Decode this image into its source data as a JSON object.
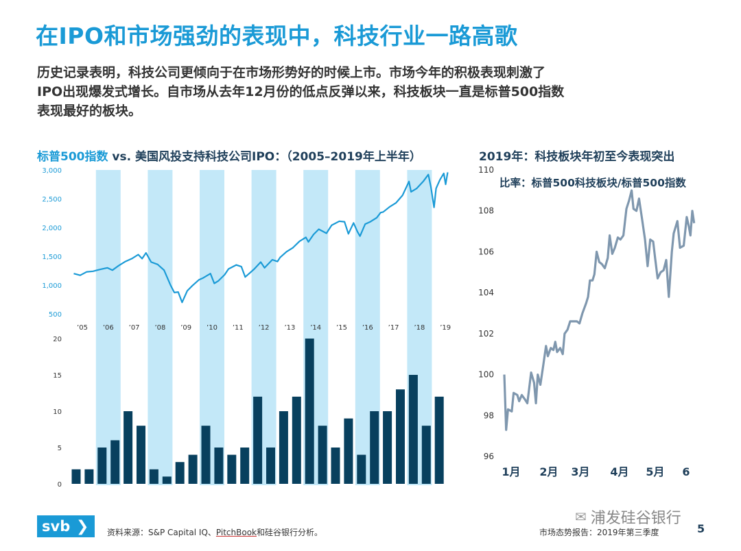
{
  "title": "在IPO和市场强劲的表现中，科技行业一路高歌",
  "intro": {
    "line1": "历史记录表明，科技公司更倾向于在市场形势好的时候上市。市场今年的积极表现刺激了",
    "line2": "IPO出现爆发式增长。自市场从去年12月份的低点反弹以来，科技板块一直是标普500指数",
    "line3": "表现最好的板块。"
  },
  "left_title": {
    "part1": "标普500指数",
    "part2": " vs. 美国风投支持科技公司IPO：（2005–2019年上半年）"
  },
  "right_title": "2019年：科技板块年初至今表现突出",
  "colors": {
    "accent": "#1a9ad6",
    "line_main": "#1a9ad6",
    "band": "#c3e8f8",
    "bar": "#08405e",
    "ratio_line": "#7f97ae"
  },
  "chart_data": [
    {
      "type": "line",
      "title": "标普500指数",
      "x": [
        "'05",
        "'06",
        "'07",
        "'08",
        "'09",
        "'10",
        "'11",
        "'12",
        "'13",
        "'14",
        "'15",
        "'16",
        "'17",
        "'18",
        "'19"
      ],
      "x_tick_labels": [
        "’05",
        "’06",
        "’07",
        "’08",
        "’09",
        "’10",
        "’11",
        "’12",
        "’13",
        "’14",
        "’15",
        "’16",
        "’17",
        "’18",
        "’19"
      ],
      "y_ticks": [
        "500",
        "1,000",
        "1,500",
        "2,000",
        "2,500",
        "3,000"
      ],
      "ylim": [
        500,
        3000
      ],
      "series": [
        {
          "name": "标普500指数",
          "points": [
            [
              2005.0,
              1200
            ],
            [
              2005.25,
              1170
            ],
            [
              2005.5,
              1230
            ],
            [
              2005.75,
              1240
            ],
            [
              2006.0,
              1270
            ],
            [
              2006.3,
              1300
            ],
            [
              2006.5,
              1260
            ],
            [
              2006.75,
              1340
            ],
            [
              2007.0,
              1410
            ],
            [
              2007.25,
              1460
            ],
            [
              2007.5,
              1530
            ],
            [
              2007.65,
              1460
            ],
            [
              2007.8,
              1560
            ],
            [
              2008.0,
              1400
            ],
            [
              2008.25,
              1360
            ],
            [
              2008.5,
              1260
            ],
            [
              2008.75,
              1000
            ],
            [
              2008.9,
              870
            ],
            [
              2009.05,
              880
            ],
            [
              2009.2,
              700
            ],
            [
              2009.4,
              900
            ],
            [
              2009.6,
              990
            ],
            [
              2009.85,
              1090
            ],
            [
              2010.0,
              1120
            ],
            [
              2010.3,
              1200
            ],
            [
              2010.45,
              1030
            ],
            [
              2010.6,
              1070
            ],
            [
              2010.85,
              1180
            ],
            [
              2011.0,
              1280
            ],
            [
              2011.3,
              1350
            ],
            [
              2011.5,
              1320
            ],
            [
              2011.65,
              1140
            ],
            [
              2011.8,
              1200
            ],
            [
              2012.0,
              1280
            ],
            [
              2012.25,
              1400
            ],
            [
              2012.4,
              1300
            ],
            [
              2012.7,
              1440
            ],
            [
              2012.9,
              1410
            ],
            [
              2013.0,
              1480
            ],
            [
              2013.25,
              1580
            ],
            [
              2013.5,
              1650
            ],
            [
              2013.75,
              1760
            ],
            [
              2014.0,
              1830
            ],
            [
              2014.1,
              1750
            ],
            [
              2014.3,
              1880
            ],
            [
              2014.5,
              1970
            ],
            [
              2014.8,
              1900
            ],
            [
              2015.0,
              2040
            ],
            [
              2015.3,
              2110
            ],
            [
              2015.5,
              2100
            ],
            [
              2015.65,
              1890
            ],
            [
              2015.85,
              2080
            ],
            [
              2016.0,
              1930
            ],
            [
              2016.1,
              1850
            ],
            [
              2016.3,
              2060
            ],
            [
              2016.5,
              2100
            ],
            [
              2016.75,
              2170
            ],
            [
              2016.9,
              2260
            ],
            [
              2017.0,
              2270
            ],
            [
              2017.25,
              2360
            ],
            [
              2017.5,
              2430
            ],
            [
              2017.75,
              2560
            ],
            [
              2018.0,
              2800
            ],
            [
              2018.08,
              2620
            ],
            [
              2018.3,
              2680
            ],
            [
              2018.55,
              2800
            ],
            [
              2018.75,
              2920
            ],
            [
              2018.85,
              2700
            ],
            [
              2018.97,
              2350
            ],
            [
              2019.05,
              2680
            ],
            [
              2019.2,
              2830
            ],
            [
              2019.35,
              2940
            ],
            [
              2019.42,
              2750
            ],
            [
              2019.5,
              2960
            ]
          ]
        }
      ],
      "shaded_years": [
        "2006",
        "2008",
        "2010",
        "2012",
        "2014",
        "2016",
        "2018"
      ]
    },
    {
      "type": "bar",
      "title": "美国风投支持科技公司IPO",
      "y_ticks": [
        "0",
        "5",
        "10",
        "15",
        "20"
      ],
      "ylim": [
        0,
        20
      ],
      "values": [
        2,
        2,
        5,
        6,
        10,
        8,
        2,
        1,
        3,
        4,
        8,
        5,
        4,
        5,
        12,
        5,
        10,
        12,
        20,
        8,
        5,
        9,
        4,
        10,
        10,
        13,
        15,
        8,
        12
      ]
    },
    {
      "type": "line",
      "title": "比率：标普500科技板块/标普500指数",
      "x_tick_labels": [
        "1月",
        "2月",
        "3月",
        "4月",
        "5月",
        "6"
      ],
      "y_ticks": [
        "96",
        "98",
        "100",
        "102",
        "104",
        "106",
        "108",
        "110"
      ],
      "ylim": [
        96,
        110
      ],
      "series": [
        {
          "name": "比率：标普500科技板块/标普500指数",
          "points": [
            [
              0.0,
              100.0
            ],
            [
              0.05,
              97.3
            ],
            [
              0.1,
              98.3
            ],
            [
              0.2,
              98.2
            ],
            [
              0.25,
              99.1
            ],
            [
              0.35,
              99.0
            ],
            [
              0.4,
              98.7
            ],
            [
              0.47,
              99.0
            ],
            [
              0.55,
              98.8
            ],
            [
              0.62,
              98.6
            ],
            [
              0.72,
              100.1
            ],
            [
              0.8,
              99.6
            ],
            [
              0.85,
              98.6
            ],
            [
              0.9,
              100.0
            ],
            [
              0.97,
              99.5
            ],
            [
              1.05,
              100.5
            ],
            [
              1.12,
              101.4
            ],
            [
              1.17,
              100.9
            ],
            [
              1.25,
              101.3
            ],
            [
              1.32,
              101.2
            ],
            [
              1.37,
              101.6
            ],
            [
              1.42,
              101.1
            ],
            [
              1.5,
              101.3
            ],
            [
              1.57,
              101.0
            ],
            [
              1.62,
              102.0
            ],
            [
              1.7,
              102.2
            ],
            [
              1.77,
              102.6
            ],
            [
              1.85,
              102.6
            ],
            [
              1.95,
              102.6
            ],
            [
              2.02,
              102.5
            ],
            [
              2.1,
              103.0
            ],
            [
              2.2,
              103.5
            ],
            [
              2.25,
              103.8
            ],
            [
              2.3,
              104.6
            ],
            [
              2.37,
              104.6
            ],
            [
              2.42,
              104.9
            ],
            [
              2.48,
              106.0
            ],
            [
              2.55,
              105.5
            ],
            [
              2.62,
              105.4
            ],
            [
              2.7,
              105.2
            ],
            [
              2.78,
              105.7
            ],
            [
              2.83,
              106.8
            ],
            [
              2.9,
              105.9
            ],
            [
              2.97,
              106.2
            ],
            [
              3.05,
              106.7
            ],
            [
              3.12,
              106.6
            ],
            [
              3.2,
              106.8
            ],
            [
              3.28,
              108.1
            ],
            [
              3.35,
              108.5
            ],
            [
              3.42,
              109.0
            ],
            [
              3.47,
              108.1
            ],
            [
              3.55,
              108.0
            ],
            [
              3.62,
              108.6
            ],
            [
              3.7,
              107.6
            ],
            [
              3.78,
              106.6
            ],
            [
              3.85,
              105.3
            ],
            [
              3.92,
              106.6
            ],
            [
              4.0,
              106.5
            ],
            [
              4.05,
              105.7
            ],
            [
              4.12,
              104.7
            ],
            [
              4.2,
              105.0
            ],
            [
              4.28,
              105.1
            ],
            [
              4.35,
              105.6
            ],
            [
              4.42,
              103.8
            ],
            [
              4.5,
              106.0
            ],
            [
              4.55,
              106.9
            ],
            [
              4.65,
              107.5
            ],
            [
              4.72,
              106.2
            ],
            [
              4.82,
              106.3
            ],
            [
              4.9,
              107.7
            ],
            [
              4.95,
              107.3
            ],
            [
              5.0,
              106.8
            ],
            [
              5.05,
              108.0
            ],
            [
              5.1,
              107.4
            ]
          ]
        }
      ],
      "note": "比率：标普500科技板块/标普500指数"
    }
  ],
  "footer": {
    "logo": "svb",
    "logo_chevron": "❯",
    "source_prefix": "资料来源：S&P Capital IQ、",
    "source_mid": "PitchBook",
    "source_suffix": "和硅谷银行分析。",
    "report": "市场态势报告：2019年第三季度",
    "page": "5",
    "wechat_icon": "wechat-icon",
    "wechat_text": "浦发硅谷银行"
  }
}
